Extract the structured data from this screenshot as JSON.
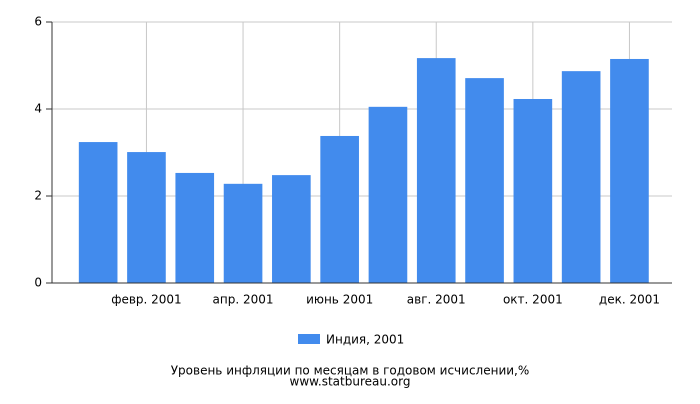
{
  "chart_data": {
    "type": "bar",
    "title": "Уровень инфляции по месяцам в годовом исчислении,%",
    "source": "www.statbureau.org",
    "categories": [
      null,
      "февр. 2001",
      null,
      "апр. 2001",
      null,
      "июнь 2001",
      null,
      "авг. 2001",
      null,
      "окт. 2001",
      null,
      "дек. 2001"
    ],
    "series": [
      {
        "name": "Индия, 2001",
        "color": "#428bed",
        "values": [
          3.24,
          3.01,
          2.53,
          2.28,
          2.48,
          3.38,
          4.05,
          5.17,
          4.71,
          4.23,
          4.87,
          5.15
        ]
      }
    ],
    "ylim": [
      0,
      6
    ],
    "yticks": [
      0,
      2,
      4,
      6
    ],
    "grid": true,
    "legend": "bottom"
  }
}
